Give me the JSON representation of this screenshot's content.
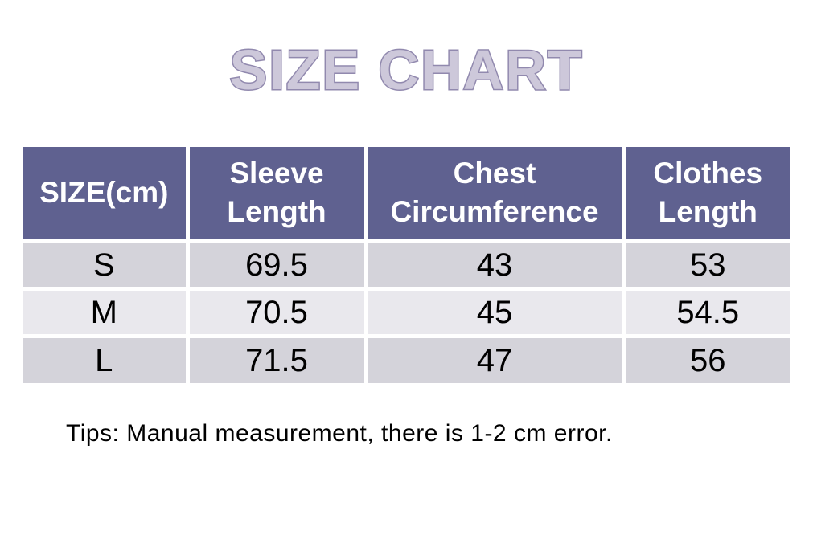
{
  "title": "SIZE CHART",
  "table": {
    "headers": [
      "SIZE(cm)",
      "Sleeve Length",
      "Chest Circumference",
      "Clothes Length"
    ],
    "rows": [
      [
        "S",
        "69.5",
        "43",
        "53"
      ],
      [
        "M",
        "70.5",
        "45",
        "54.5"
      ],
      [
        "L",
        "71.5",
        "47",
        "56"
      ]
    ]
  },
  "tips": "Tips: Manual measurement, there is 1-2 cm error.",
  "colors": {
    "header_bg": "#5f6190",
    "header_text": "#ffffff",
    "row_dark_bg": "#d4d3da",
    "row_light_bg": "#e9e8ed",
    "cell_gap": "#ffffff",
    "title_fill": "#cdc8da",
    "title_outline": "#9189ae",
    "body_text": "#000000"
  }
}
